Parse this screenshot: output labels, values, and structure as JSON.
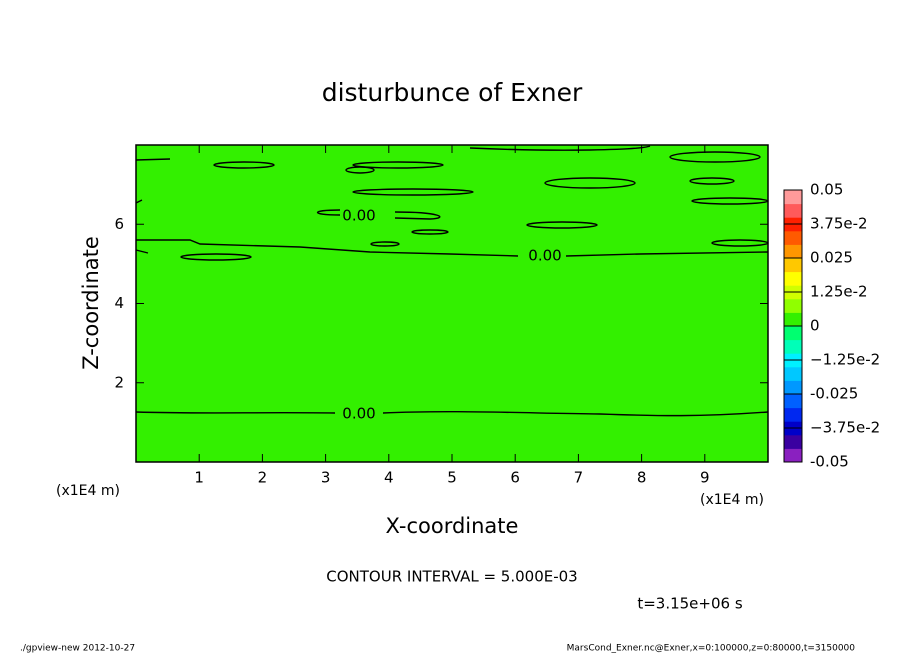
{
  "chart_data": {
    "type": "contour",
    "title": "disturbunce of Exner",
    "xlabel": "X-coordinate",
    "ylabel": "Z-coordinate",
    "x_unit": "(x1E4 m)",
    "y_unit": "(x1E4 m)",
    "xlim": [
      0,
      10
    ],
    "ylim": [
      0,
      8
    ],
    "xticks": [
      1,
      2,
      3,
      4,
      5,
      6,
      7,
      8,
      9
    ],
    "yticks": [
      2,
      4,
      6
    ],
    "fill_color": "#33f000",
    "contour_labels": [
      "0.00",
      "0.00",
      "0.00"
    ],
    "contour_interval": "CONTOUR INTERVAL = 5.000E-03",
    "time_label": "t=3.15e+06 s",
    "colorbar": {
      "lim": [
        -0.05,
        0.05
      ],
      "ticks": [
        -0.05,
        {
          "value": -0.0375,
          "label": "−3.75e-2"
        },
        -0.025,
        {
          "value": -0.0125,
          "label": "−1.25e-2"
        },
        0,
        {
          "value": 0.0125,
          "label": "1.25e-2"
        },
        0.025,
        {
          "value": 0.0375,
          "label": "3.75e-2"
        },
        0.05
      ],
      "colors": [
        "#8a20c0",
        "#3a00a0",
        "#0000c8",
        "#0028f0",
        "#0060ff",
        "#0098ff",
        "#00c8ff",
        "#00f0ff",
        "#00ffb8",
        "#00ff70",
        "#33f000",
        "#90ff00",
        "#d0ff00",
        "#ffff00",
        "#ffc800",
        "#ff9600",
        "#ff5a00",
        "#ff2000",
        "#ff5a5a",
        "#ff9a9a"
      ]
    },
    "footer_left": "./gpview-new  2012-10-27",
    "footer_right": "MarsCond_Exner.nc@Exner,x=0:100000,z=0:80000,t=3150000"
  }
}
